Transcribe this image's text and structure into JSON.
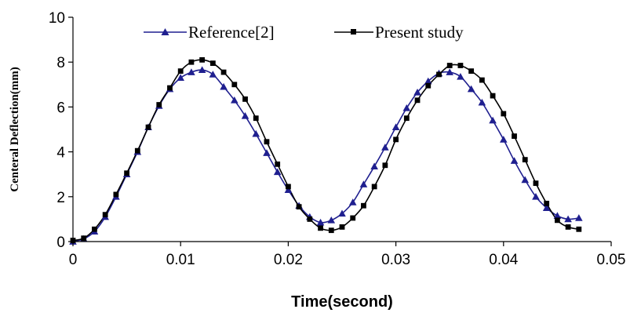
{
  "chart_data": {
    "type": "line",
    "title": "",
    "xlabel": "Time(second)",
    "ylabel": "Centeral Deflection(mm)",
    "xlim": [
      0,
      0.05
    ],
    "ylim": [
      0,
      10
    ],
    "xticks": [
      0,
      0.01,
      0.02,
      0.03,
      0.04,
      0.05
    ],
    "xtick_labels": [
      "0",
      "0.01",
      "0.02",
      "0.03",
      "0.04",
      "0.05"
    ],
    "yticks": [
      0,
      2,
      4,
      6,
      8,
      10
    ],
    "ytick_labels": [
      "0",
      "2",
      "4",
      "6",
      "8",
      "10"
    ],
    "grid": false,
    "legend_position": "top",
    "series": [
      {
        "name": "Reference[2]",
        "color": "#1f1f8f",
        "marker": "triangle",
        "points": [
          [
            0,
            0
          ],
          [
            0.001,
            0.12
          ],
          [
            0.002,
            0.45
          ],
          [
            0.003,
            1.1
          ],
          [
            0.004,
            2.0
          ],
          [
            0.005,
            3.0
          ],
          [
            0.006,
            4.0
          ],
          [
            0.007,
            5.1
          ],
          [
            0.008,
            6.05
          ],
          [
            0.009,
            6.8
          ],
          [
            0.01,
            7.3
          ],
          [
            0.011,
            7.55
          ],
          [
            0.012,
            7.65
          ],
          [
            0.013,
            7.45
          ],
          [
            0.014,
            6.9
          ],
          [
            0.015,
            6.3
          ],
          [
            0.016,
            5.6
          ],
          [
            0.017,
            4.8
          ],
          [
            0.018,
            3.95
          ],
          [
            0.019,
            3.1
          ],
          [
            0.02,
            2.3
          ],
          [
            0.021,
            1.6
          ],
          [
            0.022,
            1.1
          ],
          [
            0.023,
            0.85
          ],
          [
            0.024,
            0.95
          ],
          [
            0.025,
            1.25
          ],
          [
            0.026,
            1.75
          ],
          [
            0.027,
            2.55
          ],
          [
            0.028,
            3.35
          ],
          [
            0.029,
            4.2
          ],
          [
            0.03,
            5.1
          ],
          [
            0.031,
            5.95
          ],
          [
            0.032,
            6.65
          ],
          [
            0.033,
            7.15
          ],
          [
            0.034,
            7.5
          ],
          [
            0.035,
            7.55
          ],
          [
            0.036,
            7.35
          ],
          [
            0.037,
            6.8
          ],
          [
            0.038,
            6.2
          ],
          [
            0.039,
            5.4
          ],
          [
            0.04,
            4.55
          ],
          [
            0.041,
            3.6
          ],
          [
            0.042,
            2.75
          ],
          [
            0.043,
            2.0
          ],
          [
            0.044,
            1.5
          ],
          [
            0.045,
            1.15
          ],
          [
            0.046,
            1.0
          ],
          [
            0.047,
            1.05
          ]
        ]
      },
      {
        "name": "Present study",
        "color": "#000000",
        "marker": "square",
        "points": [
          [
            0,
            0.05
          ],
          [
            0.001,
            0.15
          ],
          [
            0.002,
            0.55
          ],
          [
            0.003,
            1.2
          ],
          [
            0.004,
            2.1
          ],
          [
            0.005,
            3.05
          ],
          [
            0.006,
            4.05
          ],
          [
            0.007,
            5.1
          ],
          [
            0.008,
            6.1
          ],
          [
            0.009,
            6.85
          ],
          [
            0.01,
            7.6
          ],
          [
            0.011,
            8.0
          ],
          [
            0.012,
            8.1
          ],
          [
            0.013,
            7.95
          ],
          [
            0.014,
            7.55
          ],
          [
            0.015,
            7.0
          ],
          [
            0.016,
            6.35
          ],
          [
            0.017,
            5.5
          ],
          [
            0.018,
            4.45
          ],
          [
            0.019,
            3.45
          ],
          [
            0.02,
            2.45
          ],
          [
            0.021,
            1.55
          ],
          [
            0.022,
            1.0
          ],
          [
            0.023,
            0.6
          ],
          [
            0.024,
            0.5
          ],
          [
            0.025,
            0.65
          ],
          [
            0.026,
            1.05
          ],
          [
            0.027,
            1.6
          ],
          [
            0.028,
            2.45
          ],
          [
            0.029,
            3.4
          ],
          [
            0.03,
            4.55
          ],
          [
            0.031,
            5.5
          ],
          [
            0.032,
            6.3
          ],
          [
            0.033,
            6.95
          ],
          [
            0.034,
            7.45
          ],
          [
            0.035,
            7.85
          ],
          [
            0.036,
            7.85
          ],
          [
            0.037,
            7.6
          ],
          [
            0.038,
            7.2
          ],
          [
            0.039,
            6.5
          ],
          [
            0.04,
            5.7
          ],
          [
            0.041,
            4.7
          ],
          [
            0.042,
            3.65
          ],
          [
            0.043,
            2.6
          ],
          [
            0.044,
            1.7
          ],
          [
            0.045,
            0.95
          ],
          [
            0.046,
            0.65
          ],
          [
            0.047,
            0.55
          ]
        ]
      }
    ]
  }
}
